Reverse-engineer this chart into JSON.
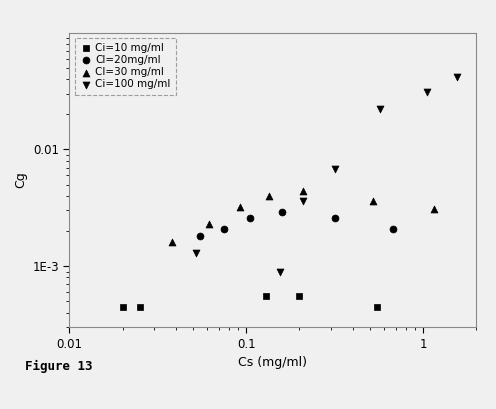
{
  "title": "",
  "xlabel": "Cs (mg/ml)",
  "ylabel": "Cg",
  "figure_caption": "Figure 13",
  "series": [
    {
      "label": "Ci=10 mg/ml",
      "marker": "s",
      "color": "#000000",
      "x": [
        0.02,
        0.025,
        0.13,
        0.2,
        0.55
      ],
      "y": [
        0.00045,
        0.00045,
        0.00055,
        0.00055,
        0.00045
      ]
    },
    {
      "label": "Cl=20mg/ml",
      "marker": "o",
      "color": "#000000",
      "x": [
        0.055,
        0.075,
        0.105,
        0.16,
        0.32,
        0.68
      ],
      "y": [
        0.0018,
        0.0021,
        0.0026,
        0.0029,
        0.0026,
        0.0021
      ]
    },
    {
      "label": "Cl=30 mg/ml",
      "marker": "^",
      "color": "#000000",
      "x": [
        0.038,
        0.062,
        0.092,
        0.135,
        0.21,
        0.52,
        1.15
      ],
      "y": [
        0.0016,
        0.0023,
        0.0032,
        0.004,
        0.0044,
        0.0036,
        0.0031
      ]
    },
    {
      "label": "Ci=100 mg/ml",
      "marker": "v",
      "color": "#000000",
      "x": [
        0.052,
        0.155,
        0.21,
        0.32,
        0.57,
        1.05,
        1.55
      ],
      "y": [
        0.0013,
        0.0009,
        0.0036,
        0.0068,
        0.022,
        0.031,
        0.042
      ]
    }
  ],
  "xlim": [
    0.01,
    2.0
  ],
  "ylim": [
    0.0003,
    0.1
  ],
  "xtick_labels": [
    "0.01",
    "0.1",
    "1"
  ],
  "xtick_vals": [
    0.01,
    0.1,
    1.0
  ],
  "ytick_labels": [
    "1E-3",
    "0.01"
  ],
  "ytick_vals": [
    0.001,
    0.01
  ],
  "background_color": "#f0f0f0",
  "plot_bg_color": "#f0f0f0",
  "legend_fontsize": 7.5,
  "axis_fontsize": 9,
  "marker_size": 5,
  "caption_fontsize": 9
}
